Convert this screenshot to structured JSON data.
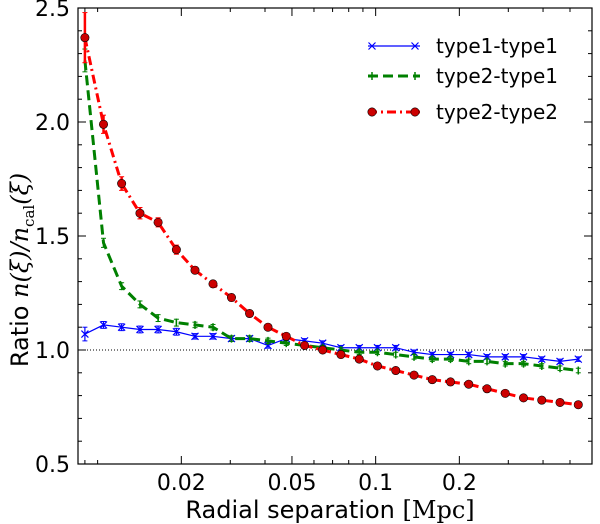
{
  "chart_data": {
    "type": "line",
    "xscale": "log",
    "xlabel_prefix": "Radial separation ",
    "xlabel_unit": "[Mpc]",
    "ylabel_prefix": "Ratio ",
    "ylabel_math": "n(ξ)/n",
    "ylabel_sub": "cal",
    "ylabel_suffix": "(ξ)",
    "xlim": [
      0.0085,
      0.6
    ],
    "ylim": [
      0.5,
      2.5
    ],
    "xticks": [
      0.02,
      0.05,
      0.1,
      0.2
    ],
    "xtick_labels": [
      "0.02",
      "0.05",
      "0.1",
      "0.2"
    ],
    "yticks": [
      0.5,
      1.0,
      1.5,
      2.0,
      2.5
    ],
    "ytick_labels": [
      "0.5",
      "1.0",
      "1.5",
      "2.0",
      "2.5"
    ],
    "reference_line": 1.0,
    "legend_position": "top-right",
    "x": [
      0.009,
      0.0105,
      0.0122,
      0.0142,
      0.0165,
      0.0192,
      0.0224,
      0.026,
      0.0303,
      0.0352,
      0.041,
      0.0477,
      0.0555,
      0.0645,
      0.075,
      0.0873,
      0.1015,
      0.1181,
      0.1374,
      0.1598,
      0.1859,
      0.2162,
      0.2515,
      0.2925,
      0.3403,
      0.3958,
      0.4604,
      0.5356
    ],
    "series": [
      {
        "name": "type1-type1",
        "color": "#0000ff",
        "marker": "x",
        "linestyle": "solid",
        "values": [
          1.07,
          1.11,
          1.1,
          1.09,
          1.09,
          1.08,
          1.06,
          1.06,
          1.05,
          1.05,
          1.02,
          1.05,
          1.04,
          1.03,
          1.01,
          1.01,
          1.01,
          1.01,
          0.99,
          0.98,
          0.98,
          0.98,
          0.97,
          0.97,
          0.97,
          0.96,
          0.95,
          0.96
        ],
        "errors": [
          0.03,
          0.015,
          0.015,
          0.015,
          0.015,
          0.015,
          0.012,
          0.012,
          0.012,
          0.012,
          0.012,
          0.01,
          0.01,
          0.01,
          0.01,
          0.01,
          0.01,
          0.01,
          0.01,
          0.01,
          0.01,
          0.01,
          0.01,
          0.01,
          0.01,
          0.01,
          0.01,
          0.01
        ]
      },
      {
        "name": "type2-type1",
        "color": "#008000",
        "marker": "|",
        "linestyle": "dashed",
        "values": [
          2.27,
          1.47,
          1.28,
          1.2,
          1.14,
          1.12,
          1.11,
          1.1,
          1.05,
          1.05,
          1.04,
          1.03,
          1.02,
          1.01,
          1.0,
          0.99,
          0.99,
          0.98,
          0.97,
          0.96,
          0.96,
          0.95,
          0.95,
          0.94,
          0.94,
          0.93,
          0.92,
          0.91
        ],
        "errors": [
          0.05,
          0.02,
          0.015,
          0.015,
          0.015,
          0.015,
          0.012,
          0.012,
          0.012,
          0.012,
          0.012,
          0.01,
          0.01,
          0.01,
          0.01,
          0.01,
          0.01,
          0.01,
          0.01,
          0.01,
          0.01,
          0.01,
          0.01,
          0.01,
          0.01,
          0.01,
          0.01,
          0.01
        ]
      },
      {
        "name": "type2-type2",
        "color": "#ff0000",
        "marker_color": "#cc0000",
        "marker": "o",
        "linestyle": "dashdot",
        "values": [
          2.37,
          1.99,
          1.73,
          1.6,
          1.56,
          1.44,
          1.35,
          1.29,
          1.23,
          1.16,
          1.1,
          1.06,
          1.02,
          1.0,
          0.98,
          0.96,
          0.93,
          0.91,
          0.89,
          0.87,
          0.86,
          0.85,
          0.83,
          0.81,
          0.79,
          0.78,
          0.77,
          0.76
        ],
        "errors": [
          0.11,
          0.04,
          0.03,
          0.025,
          0.02,
          0.02,
          0.015,
          0.015,
          0.015,
          0.012,
          0.012,
          0.01,
          0.01,
          0.01,
          0.01,
          0.01,
          0.01,
          0.01,
          0.01,
          0.01,
          0.01,
          0.01,
          0.01,
          0.01,
          0.01,
          0.01,
          0.01,
          0.01
        ]
      }
    ]
  }
}
